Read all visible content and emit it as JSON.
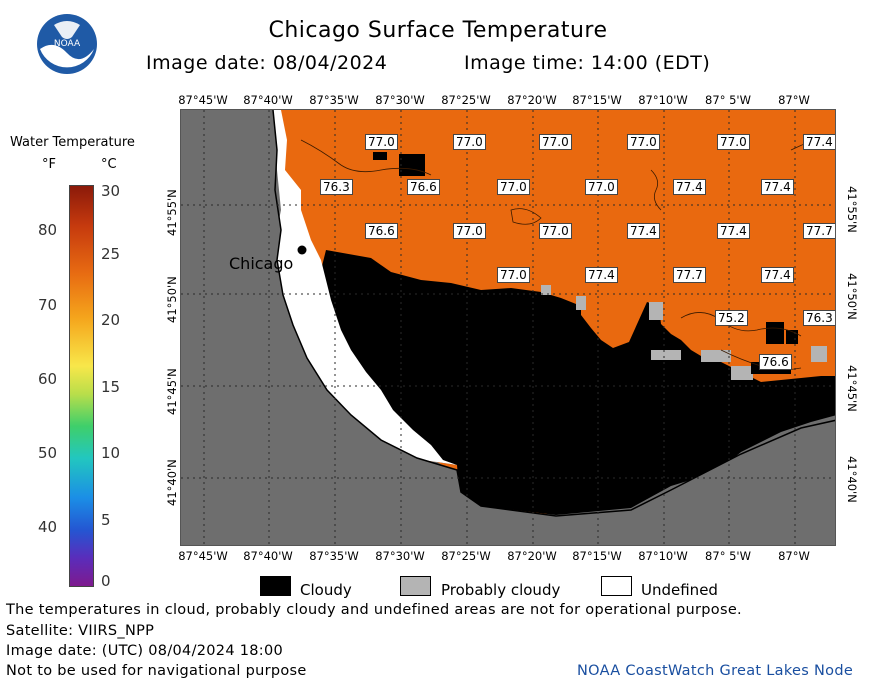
{
  "header": {
    "title": "Chicago Surface Temperature",
    "image_date": "Image date: 08/04/2024",
    "image_time": "Image time: 14:00 (EDT)"
  },
  "logo": {
    "text": "NOAA"
  },
  "legend": {
    "title": "Water Temperature",
    "unit_f": "°F",
    "unit_c": "°C",
    "f_ticks": [
      "80",
      "70",
      "60",
      "50",
      "40"
    ],
    "c_ticks": [
      "30",
      "25",
      "20",
      "15",
      "10",
      "5",
      "0"
    ]
  },
  "map": {
    "lon_labels": [
      "87°45'W",
      "87°40'W",
      "87°35'W",
      "87°30'W",
      "87°25'W",
      "87°20'W",
      "87°15'W",
      "87°10'W",
      "87° 5'W",
      "87°W"
    ],
    "lat_labels": [
      "41°55'N",
      "41°50'N",
      "41°45'N",
      "41°40'N"
    ],
    "city": "Chicago",
    "temps": [
      {
        "v": "77.0"
      },
      {
        "v": "77.0"
      },
      {
        "v": "77.0"
      },
      {
        "v": "77.0"
      },
      {
        "v": "77.0"
      },
      {
        "v": "77.4"
      },
      {
        "v": "76.3"
      },
      {
        "v": "76.6"
      },
      {
        "v": "77.0"
      },
      {
        "v": "77.0"
      },
      {
        "v": "77.4"
      },
      {
        "v": "77.4"
      },
      {
        "v": "76.6"
      },
      {
        "v": "77.0"
      },
      {
        "v": "77.0"
      },
      {
        "v": "77.4"
      },
      {
        "v": "77.4"
      },
      {
        "v": "77.7"
      },
      {
        "v": "77.0"
      },
      {
        "v": "77.4"
      },
      {
        "v": "77.7"
      },
      {
        "v": "77.4"
      },
      {
        "v": "75.2"
      },
      {
        "v": "76.3"
      },
      {
        "v": "76.6"
      }
    ],
    "colors": {
      "water": "#e9690f",
      "cloud": "#000000",
      "probably_cloudy": "#b4b4b4",
      "land": "#6e6e6e",
      "undefined": "#ffffff"
    }
  },
  "key": {
    "cloudy": "Cloudy",
    "probably_cloudy": "Probably cloudy",
    "undefined": "Undefined"
  },
  "footer": {
    "line1": "The temperatures in cloud, probably cloudy and undefined areas are not for operational purpose.",
    "line2": "Satellite: VIIRS_NPP",
    "line3": "Image date: (UTC) 08/04/2024  18:00",
    "line4": "Not to be used for navigational purpose",
    "node": "NOAA CoastWatch Great Lakes Node"
  }
}
